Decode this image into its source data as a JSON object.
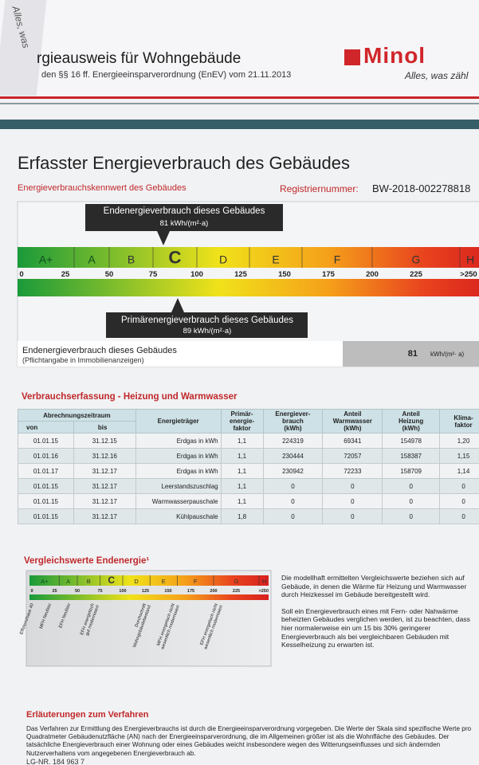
{
  "header": {
    "title": "rgieausweis für Wohngebäude",
    "subtitle": "den §§ 16 ff. Energieeinsparverordnung (EnEV) vom 21.11.2013",
    "logo": "Minol",
    "slogan": "Alles, was zähl",
    "corner_slogan": "Alles, was"
  },
  "page_title": "Erfasster Energieverbrauch des Gebäudes",
  "rating": {
    "label": "Energieverbrauchskennwert des Gebäudes",
    "registration_label": "Registriernummer:",
    "registration_number": "BW-2018-002278818",
    "classes": [
      "A+",
      "A",
      "B",
      "C",
      "D",
      "E",
      "F",
      "G",
      "H"
    ],
    "ticks": [
      "0",
      "25",
      "50",
      "75",
      "100",
      "125",
      "150",
      "175",
      "200",
      "225",
      ">250"
    ],
    "final_energy": {
      "label": "Endenergieverbrauch dieses Gebäudes",
      "value": "81 kWh/(m²·a)"
    },
    "primary_energy": {
      "label": "Primärenergieverbrauch dieses Gebäudes",
      "value": "89 kWh/(m²·a)"
    },
    "summary": {
      "label": "Endenergieverbrauch dieses Gebäudes",
      "note": "(Pflichtangabe in Immobilienanzeigen)",
      "value": "81",
      "unit": "kWh/(m²· a)"
    }
  },
  "consumption": {
    "title": "Verbrauchserfassung - Heizung und Warmwasser",
    "headers": [
      "Abrechnungszeitraum",
      "von",
      "bis",
      "Energieträger",
      "Primär-\nenergie-\nfaktor",
      "Energiever-\nbrauch\n(kWh)",
      "Anteil\nWarmwasser\n(kWh)",
      "Anteil\nHeizung\n(kWh)",
      "Klima-\nfaktor"
    ],
    "rows": [
      [
        "01.01.15",
        "31.12.15",
        "Erdgas in kWh",
        "1,1",
        "224319",
        "69341",
        "154978",
        "1,20"
      ],
      [
        "01.01.16",
        "31.12.16",
        "Erdgas in kWh",
        "1,1",
        "230444",
        "72057",
        "158387",
        "1,15"
      ],
      [
        "01.01.17",
        "31.12.17",
        "Erdgas in kWh",
        "1,1",
        "230942",
        "72233",
        "158709",
        "1,14"
      ],
      [
        "01.01.15",
        "31.12.17",
        "Leerstandszuschlag",
        "1,1",
        "0",
        "0",
        "0",
        "0"
      ],
      [
        "01.01.15",
        "31.12.17",
        "Warmwasserpauschale",
        "1,1",
        "0",
        "0",
        "0",
        "0"
      ],
      [
        "01.01.15",
        "31.12.17",
        "Kühlpauschale",
        "1,8",
        "0",
        "0",
        "0",
        "0"
      ]
    ]
  },
  "comparison": {
    "title": "Vergleichswerte Endenergie¹",
    "labels": [
      [
        "Effizienzhaus 40"
      ],
      [
        "MFH Neubau"
      ],
      [
        "EFH Neubau"
      ],
      [
        "EFH energetisch",
        "gut modernisiert"
      ],
      [
        "Durchschnitt",
        "Wohngebäudebestand"
      ],
      [
        "MFH energetisch nicht",
        "wesentlich modernisiert"
      ],
      [
        "EFH energetisch nicht",
        "wesentlich modernisiert"
      ]
    ],
    "paragraphs": [
      "Die modellhaft ermittelten Vergleichswerte beziehen sich auf Gebäude, in denen die Wärme für Heizung und Warmwasser durch Heizkessel im Gebäude bereitgestellt wird.",
      "Soll ein Energieverbrauch eines mit Fern- oder Nahwärme beheizten Gebäudes verglichen werden, ist zu beachten, dass hier normalerweise ein um 15 bis 30% geringerer Energieverbrauch als bei vergleichbaren Gebäuden mit Kesselheizung zu erwarten ist."
    ]
  },
  "explanation": {
    "title": "Erläuterungen zum Verfahren",
    "text": "Das Verfahren zur Ermittlung des Energieverbrauchs ist durch die Energieeinsparverordnung vorgegeben. Die Werte der Skala sind spezifische Werte pro Quadratmeter Gebäudenutzfläche (AN) nach der Energieeinsparverordnung, die im Allgemeinen größer ist als die Wohnfläche des Gebäudes. Der tatsächliche Energieverbrauch einer Wohnung oder eines Gebäudes weicht insbesondere wegen des Witterungseinflusses und sich ändernden Nutzerverhaltens vom angegebenen Energieverbrauch ab.",
    "footer": "LG-NR. 184 963 7"
  }
}
